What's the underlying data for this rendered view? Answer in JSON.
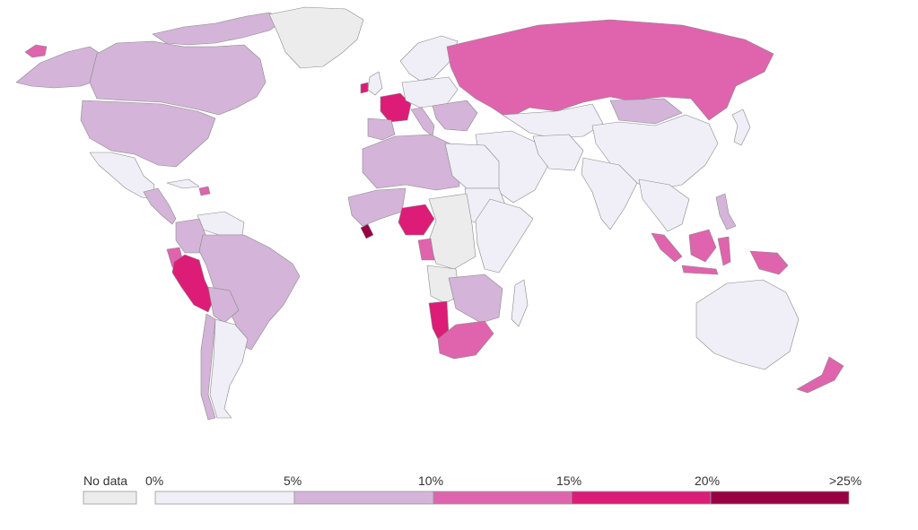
{
  "colors": {
    "no_data": "#ececec",
    "bin_0_5": "#f0eef6",
    "bin_5_10": "#d4b4d8",
    "bin_10_15": "#df64ad",
    "bin_15_20": "#dd1c77",
    "bin_20_25plus": "#980043"
  },
  "legend": {
    "no_data_label": "No data",
    "ticks": [
      "0%",
      "5%",
      "10%",
      "15%",
      "20%",
      ">25%"
    ],
    "bins": [
      {
        "from": "0%",
        "to": "5%",
        "color_key": "bin_0_5"
      },
      {
        "from": "5%",
        "to": "10%",
        "color_key": "bin_5_10"
      },
      {
        "from": "10%",
        "to": "15%",
        "color_key": "bin_10_15"
      },
      {
        "from": "15%",
        "to": "20%",
        "color_key": "bin_15_20"
      },
      {
        "from": "20%",
        "to": ">25%",
        "color_key": "bin_20_25plus"
      }
    ]
  },
  "regions": [
    {
      "name": "greenland",
      "bin": "no_data"
    },
    {
      "name": "canada",
      "bin": "bin_5_10"
    },
    {
      "name": "alaska",
      "bin": "bin_5_10"
    },
    {
      "name": "usa",
      "bin": "bin_5_10"
    },
    {
      "name": "mexico",
      "bin": "bin_0_5"
    },
    {
      "name": "central-america",
      "bin": "bin_5_10"
    },
    {
      "name": "cuba",
      "bin": "bin_0_5"
    },
    {
      "name": "haiti",
      "bin": "bin_10_15"
    },
    {
      "name": "colombia",
      "bin": "bin_5_10"
    },
    {
      "name": "venezuela",
      "bin": "bin_0_5"
    },
    {
      "name": "peru",
      "bin": "bin_15_20"
    },
    {
      "name": "ecuador",
      "bin": "bin_10_15"
    },
    {
      "name": "brazil",
      "bin": "bin_5_10"
    },
    {
      "name": "bolivia",
      "bin": "bin_5_10"
    },
    {
      "name": "chile",
      "bin": "bin_5_10"
    },
    {
      "name": "argentina",
      "bin": "bin_0_5"
    },
    {
      "name": "iceland",
      "bin": "bin_10_15"
    },
    {
      "name": "uk",
      "bin": "bin_0_5"
    },
    {
      "name": "ireland",
      "bin": "bin_15_20"
    },
    {
      "name": "france",
      "bin": "bin_15_20"
    },
    {
      "name": "spain-portugal",
      "bin": "bin_5_10"
    },
    {
      "name": "scandinavia",
      "bin": "bin_0_5"
    },
    {
      "name": "central-europe",
      "bin": "bin_0_5"
    },
    {
      "name": "italy",
      "bin": "bin_5_10"
    },
    {
      "name": "balkans",
      "bin": "bin_5_10"
    },
    {
      "name": "russia",
      "bin": "bin_10_15"
    },
    {
      "name": "kazakhstan",
      "bin": "bin_0_5"
    },
    {
      "name": "mongolia",
      "bin": "bin_5_10"
    },
    {
      "name": "china",
      "bin": "bin_0_5"
    },
    {
      "name": "middle-east",
      "bin": "bin_0_5"
    },
    {
      "name": "iran",
      "bin": "bin_0_5"
    },
    {
      "name": "india",
      "bin": "bin_0_5"
    },
    {
      "name": "southeast-asia",
      "bin": "bin_0_5"
    },
    {
      "name": "philippines",
      "bin": "bin_5_10"
    },
    {
      "name": "sumatra",
      "bin": "bin_10_15"
    },
    {
      "name": "java",
      "bin": "bin_10_15"
    },
    {
      "name": "borneo",
      "bin": "bin_10_15"
    },
    {
      "name": "sulawesi",
      "bin": "bin_10_15"
    },
    {
      "name": "new-guinea",
      "bin": "bin_10_15"
    },
    {
      "name": "japan",
      "bin": "bin_0_5"
    },
    {
      "name": "australia",
      "bin": "bin_0_5"
    },
    {
      "name": "new-zealand",
      "bin": "bin_10_15"
    },
    {
      "name": "north-africa-west",
      "bin": "bin_5_10"
    },
    {
      "name": "libya-egypt",
      "bin": "bin_0_5"
    },
    {
      "name": "sudan",
      "bin": "bin_0_5"
    },
    {
      "name": "west-africa",
      "bin": "bin_5_10"
    },
    {
      "name": "nigeria",
      "bin": "bin_15_20"
    },
    {
      "name": "liberia",
      "bin": "bin_20_25plus"
    },
    {
      "name": "central-africa",
      "bin": "no_data"
    },
    {
      "name": "east-africa",
      "bin": "bin_0_5"
    },
    {
      "name": "gabon",
      "bin": "bin_10_15"
    },
    {
      "name": "angola",
      "bin": "no_data"
    },
    {
      "name": "namibia",
      "bin": "bin_15_20"
    },
    {
      "name": "south-africa",
      "bin": "bin_10_15"
    },
    {
      "name": "southern-africa-east",
      "bin": "bin_5_10"
    },
    {
      "name": "madagascar",
      "bin": "bin_0_5"
    },
    {
      "name": "arctic-islands",
      "bin": "bin_5_10"
    }
  ]
}
